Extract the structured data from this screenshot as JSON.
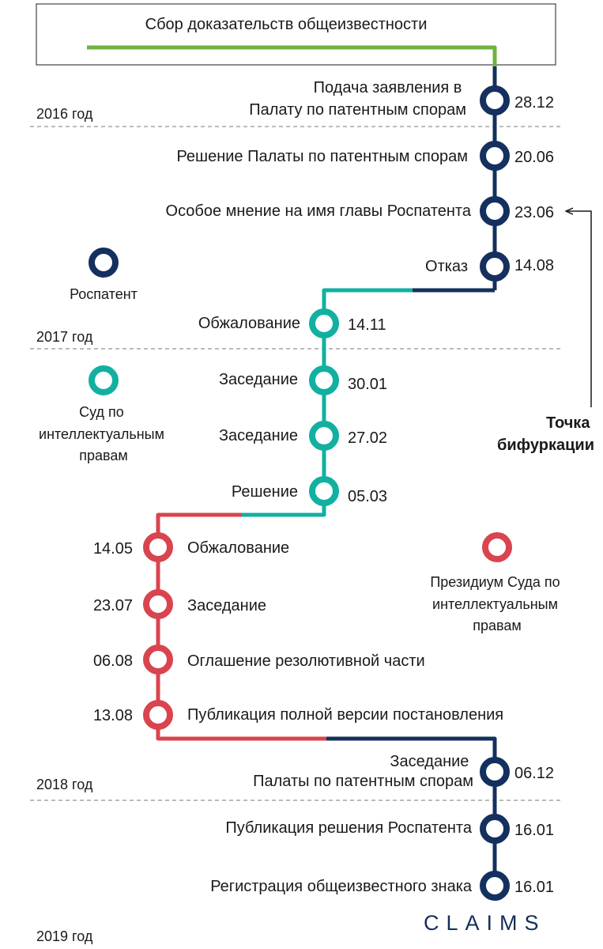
{
  "header": {
    "title": "Сбор доказательств общеизвестности"
  },
  "colors": {
    "rospatent": "#14305e",
    "ip_court": "#12b0a0",
    "presidium": "#d9444f",
    "evidence": "#6db33f",
    "divider": "#777777"
  },
  "years": [
    "2016 год",
    "2017 год",
    "2018 год",
    "2019 год"
  ],
  "legend": [
    {
      "lines": [
        "Роспатент"
      ],
      "color_key": "rospatent",
      "icon": "ring-icon"
    },
    {
      "lines": [
        "Суд по",
        "интеллектуальным",
        "правам"
      ],
      "color_key": "ip_court",
      "icon": "ring-icon"
    },
    {
      "lines": [
        "Президиум Суда по",
        "интеллектуальным",
        "правам"
      ],
      "color_key": "presidium",
      "icon": "ring-icon"
    }
  ],
  "events": [
    {
      "lines": [
        "Подача заявления в",
        "Палату по патентным спорам"
      ],
      "date": "28.12",
      "org": "rospatent"
    },
    {
      "lines": [
        "Решение Палаты по патентным спорам"
      ],
      "date": "20.06",
      "org": "rospatent"
    },
    {
      "lines": [
        "Особое мнение на имя главы Роспатента"
      ],
      "date": "23.06",
      "org": "rospatent"
    },
    {
      "lines": [
        "Отказ"
      ],
      "date": "14.08",
      "org": "rospatent"
    },
    {
      "lines": [
        "Обжалование"
      ],
      "date": "14.11",
      "org": "ip_court"
    },
    {
      "lines": [
        "Заседание"
      ],
      "date": "30.01",
      "org": "ip_court"
    },
    {
      "lines": [
        "Заседание"
      ],
      "date": "27.02",
      "org": "ip_court"
    },
    {
      "lines": [
        "Решение"
      ],
      "date": "05.03",
      "org": "ip_court"
    },
    {
      "lines": [
        "Обжалование"
      ],
      "date": "14.05",
      "org": "presidium"
    },
    {
      "lines": [
        "Заседание"
      ],
      "date": "23.07",
      "org": "presidium"
    },
    {
      "lines": [
        "Оглашение резолютивной части"
      ],
      "date": "06.08",
      "org": "presidium"
    },
    {
      "lines": [
        "Публикация полной версии постановления"
      ],
      "date": "13.08",
      "org": "presidium"
    },
    {
      "lines": [
        "Заседание",
        "Палаты по патентным спорам"
      ],
      "date": "06.12",
      "org": "rospatent"
    },
    {
      "lines": [
        "Публикация решения Роспатента"
      ],
      "date": "16.01",
      "org": "rospatent"
    },
    {
      "lines": [
        "Регистрация общеизвестного знака"
      ],
      "date": "16.01",
      "org": "rospatent"
    }
  ],
  "bifurcation": {
    "lines": [
      "Точка",
      "бифуркации"
    ]
  },
  "brand": "CLAIMS"
}
